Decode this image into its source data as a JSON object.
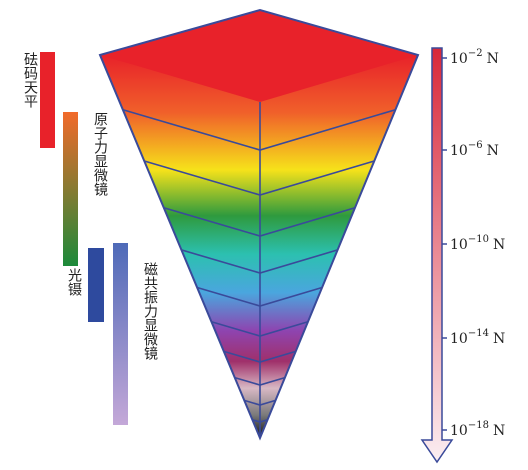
{
  "instruments": [
    {
      "label": "砝码天平"
    },
    {
      "label": "原子力显微镜"
    },
    {
      "label": "光镊"
    },
    {
      "label": "磁共振力显微镜"
    }
  ],
  "scale": [
    {
      "base": "10",
      "exponent": "−2",
      "unit": "N"
    },
    {
      "base": "10",
      "exponent": "−6",
      "unit": "N"
    },
    {
      "base": "10",
      "exponent": "−10",
      "unit": "N"
    },
    {
      "base": "10",
      "exponent": "−14",
      "unit": "N"
    },
    {
      "base": "10",
      "exponent": "−18",
      "unit": "N"
    }
  ]
}
